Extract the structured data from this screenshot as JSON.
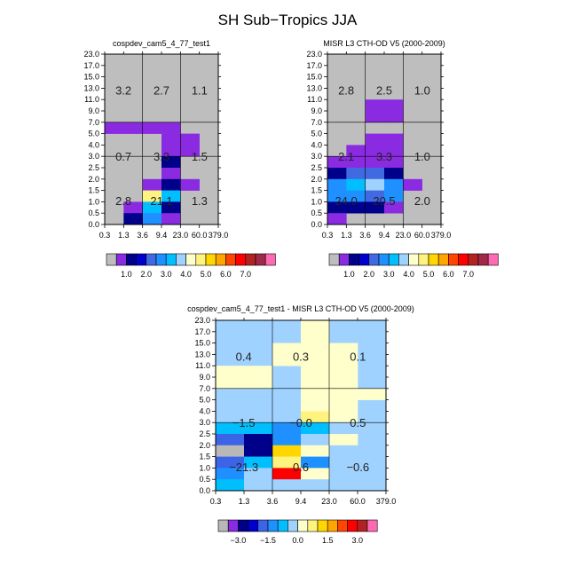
{
  "main_title": "SH Sub−Tropics JJA",
  "colors": {
    "gray": "#bebebe",
    "palette": [
      "#8a2be2",
      "#00008b",
      "#0000cd",
      "#4169e1",
      "#1e90ff",
      "#00bfff",
      "#a0d2ff",
      "#ffffcc",
      "#fff380",
      "#ffd700",
      "#ffa500",
      "#ff4500",
      "#ff0000",
      "#b22222",
      "#a0294a",
      "#ff69b4"
    ],
    "diff_palette": [
      "#b8b8b8",
      "#8a2be2",
      "#00008b",
      "#0000cd",
      "#3c64e6",
      "#1e90ff",
      "#00bfff",
      "#a0d2ff",
      "#ffffcc",
      "#fff380",
      "#ffd700",
      "#ffa500",
      "#ff4500",
      "#ff0000",
      "#b22222",
      "#ff69b4"
    ]
  },
  "chart_data": [
    {
      "id": "model",
      "type": "heatmap",
      "title": "cospdev_cam5_4_77_test1",
      "x_ticks": [
        "0.3",
        "1.3",
        "3.6",
        "9.4",
        "23.0",
        "60.0",
        "379.0"
      ],
      "y_ticks": [
        "0.0",
        "0.5",
        "1.0",
        "1.5",
        "2.0",
        "2.5",
        "3.0",
        "4.0",
        "5.0",
        "7.0",
        "9.0",
        "11.0",
        "13.0",
        "15.0",
        "17.0",
        "23.0"
      ],
      "region_labels": [
        {
          "text": "3.2",
          "col": 0,
          "row": "high"
        },
        {
          "text": "2.7",
          "col": 1,
          "row": "high"
        },
        {
          "text": "1.1",
          "col": 2,
          "row": "high"
        },
        {
          "text": "0.7",
          "col": 0,
          "row": "mid"
        },
        {
          "text": "3.3",
          "col": 1,
          "row": "mid"
        },
        {
          "text": "1.5",
          "col": 2,
          "row": "mid"
        },
        {
          "text": "2.8",
          "col": 0,
          "row": "low"
        },
        {
          "text": "21.1",
          "col": 1,
          "row": "low"
        },
        {
          "text": "1.3",
          "col": 2,
          "row": "low"
        }
      ],
      "cells": [
        {
          "tau": 0,
          "ctp": 8,
          "bin": 1
        },
        {
          "tau": 1,
          "ctp": 8,
          "bin": 1
        },
        {
          "tau": 2,
          "ctp": 8,
          "bin": 1
        },
        {
          "tau": 3,
          "ctp": 8,
          "bin": 1
        },
        {
          "tau": 4,
          "ctp": 7,
          "bin": 1
        },
        {
          "tau": 3,
          "ctp": 7,
          "bin": 1
        },
        {
          "tau": 4,
          "ctp": 6,
          "bin": 1
        },
        {
          "tau": 3,
          "ctp": 6,
          "bin": 1
        },
        {
          "tau": 3,
          "ctp": 5,
          "bin": 2
        },
        {
          "tau": 3,
          "ctp": 4,
          "bin": 1
        },
        {
          "tau": 2,
          "ctp": 3,
          "bin": 1
        },
        {
          "tau": 3,
          "ctp": 3,
          "bin": 2
        },
        {
          "tau": 4,
          "ctp": 3,
          "bin": 1
        },
        {
          "tau": 2,
          "ctp": 2,
          "bin": 9
        },
        {
          "tau": 3,
          "ctp": 2,
          "bin": 6
        },
        {
          "tau": 1,
          "ctp": 1,
          "bin": 1
        },
        {
          "tau": 2,
          "ctp": 1,
          "bin": 6
        },
        {
          "tau": 3,
          "ctp": 1,
          "bin": 2
        },
        {
          "tau": 1,
          "ctp": 0,
          "bin": 2
        },
        {
          "tau": 2,
          "ctp": 0,
          "bin": 5
        },
        {
          "tau": 3,
          "ctp": 0,
          "bin": 1
        }
      ]
    },
    {
      "id": "obs",
      "type": "heatmap",
      "title": "MISR L3 CTH-OD V5 (2000-2009)",
      "x_ticks": [
        "0.3",
        "1.3",
        "3.6",
        "9.4",
        "23.0",
        "60.0",
        "379.0"
      ],
      "y_ticks": [
        "0.0",
        "0.5",
        "1.0",
        "1.5",
        "2.0",
        "2.5",
        "3.0",
        "4.0",
        "5.0",
        "7.0",
        "9.0",
        "11.0",
        "13.0",
        "15.0",
        "17.0",
        "23.0"
      ],
      "region_labels": [
        {
          "text": "2.8",
          "col": 0,
          "row": "high"
        },
        {
          "text": "2.5",
          "col": 1,
          "row": "high"
        },
        {
          "text": "1.0",
          "col": 2,
          "row": "high"
        },
        {
          "text": "2.1",
          "col": 0,
          "row": "mid"
        },
        {
          "text": "3.3",
          "col": 1,
          "row": "mid"
        },
        {
          "text": "1.0",
          "col": 2,
          "row": "mid"
        },
        {
          "text": "24.0",
          "col": 0,
          "row": "low"
        },
        {
          "text": "20.5",
          "col": 1,
          "row": "low"
        },
        {
          "text": "2.0",
          "col": 2,
          "row": "low"
        }
      ],
      "cells": [
        {
          "tau": 2,
          "ctp": 10,
          "bin": 1
        },
        {
          "tau": 3,
          "ctp": 10,
          "bin": 1
        },
        {
          "tau": 2,
          "ctp": 9,
          "bin": 1
        },
        {
          "tau": 3,
          "ctp": 9,
          "bin": 1
        },
        {
          "tau": 2,
          "ctp": 7,
          "bin": 1
        },
        {
          "tau": 3,
          "ctp": 7,
          "bin": 1
        },
        {
          "tau": 1,
          "ctp": 6,
          "bin": 1
        },
        {
          "tau": 2,
          "ctp": 6,
          "bin": 1
        },
        {
          "tau": 3,
          "ctp": 6,
          "bin": 1
        },
        {
          "tau": 0,
          "ctp": 5,
          "bin": 1
        },
        {
          "tau": 1,
          "ctp": 5,
          "bin": 1
        },
        {
          "tau": 2,
          "ctp": 5,
          "bin": 1
        },
        {
          "tau": 3,
          "ctp": 5,
          "bin": 1
        },
        {
          "tau": 0,
          "ctp": 4,
          "bin": 2
        },
        {
          "tau": 1,
          "ctp": 4,
          "bin": 4
        },
        {
          "tau": 2,
          "ctp": 4,
          "bin": 4
        },
        {
          "tau": 3,
          "ctp": 4,
          "bin": 2
        },
        {
          "tau": 0,
          "ctp": 3,
          "bin": 5
        },
        {
          "tau": 1,
          "ctp": 3,
          "bin": 6
        },
        {
          "tau": 2,
          "ctp": 3,
          "bin": 7
        },
        {
          "tau": 3,
          "ctp": 3,
          "bin": 5
        },
        {
          "tau": 4,
          "ctp": 3,
          "bin": 1
        },
        {
          "tau": 0,
          "ctp": 2,
          "bin": 5
        },
        {
          "tau": 1,
          "ctp": 2,
          "bin": 5
        },
        {
          "tau": 2,
          "ctp": 2,
          "bin": 4
        },
        {
          "tau": 3,
          "ctp": 2,
          "bin": 5
        },
        {
          "tau": 0,
          "ctp": 1,
          "bin": 2
        },
        {
          "tau": 1,
          "ctp": 1,
          "bin": 2
        },
        {
          "tau": 2,
          "ctp": 1,
          "bin": 2
        },
        {
          "tau": 3,
          "ctp": 1,
          "bin": 1
        },
        {
          "tau": 0,
          "ctp": 0,
          "bin": 1
        }
      ]
    },
    {
      "id": "diff",
      "type": "heatmap",
      "title": "cospdev_cam5_4_77_test1 - MISR L3 CTH-OD V5 (2000-2009)",
      "x_ticks": [
        "0.3",
        "1.3",
        "3.6",
        "9.4",
        "23.0",
        "60.0",
        "379.0"
      ],
      "y_ticks": [
        "0.0",
        "0.5",
        "1.0",
        "1.5",
        "2.0",
        "2.5",
        "3.0",
        "4.0",
        "5.0",
        "7.0",
        "9.0",
        "11.0",
        "13.0",
        "15.0",
        "17.0",
        "23.0"
      ],
      "region_labels": [
        {
          "text": "0.4",
          "col": 0,
          "row": "high"
        },
        {
          "text": "0.3",
          "col": 1,
          "row": "high"
        },
        {
          "text": "0.1",
          "col": 2,
          "row": "high"
        },
        {
          "text": "−1.5",
          "col": 0,
          "row": "mid"
        },
        {
          "text": "−0.0",
          "col": 1,
          "row": "mid"
        },
        {
          "text": "0.5",
          "col": 2,
          "row": "mid"
        },
        {
          "text": "−21.3",
          "col": 0,
          "row": "low"
        },
        {
          "text": "0.6",
          "col": 1,
          "row": "low"
        },
        {
          "text": "−0.6",
          "col": 2,
          "row": "low"
        }
      ],
      "default_bin": 7,
      "cells": [
        {
          "tau": 0,
          "ctp": 13,
          "bin": 7
        },
        {
          "tau": 3,
          "ctp": 14,
          "bin": 8
        },
        {
          "tau": 2,
          "ctp": 12,
          "bin": 8
        },
        {
          "tau": 3,
          "ctp": 12,
          "bin": 8
        },
        {
          "tau": 3,
          "ctp": 13,
          "bin": 8
        },
        {
          "tau": 4,
          "ctp": 12,
          "bin": 8
        },
        {
          "tau": 0,
          "ctp": 10,
          "bin": 8
        },
        {
          "tau": 1,
          "ctp": 10,
          "bin": 8
        },
        {
          "tau": 2,
          "ctp": 11,
          "bin": 8
        },
        {
          "tau": 3,
          "ctp": 11,
          "bin": 8
        },
        {
          "tau": 4,
          "ctp": 11,
          "bin": 8
        },
        {
          "tau": 0,
          "ctp": 9,
          "bin": 8
        },
        {
          "tau": 1,
          "ctp": 9,
          "bin": 8
        },
        {
          "tau": 3,
          "ctp": 10,
          "bin": 8
        },
        {
          "tau": 4,
          "ctp": 10,
          "bin": 8
        },
        {
          "tau": 3,
          "ctp": 9,
          "bin": 8
        },
        {
          "tau": 4,
          "ctp": 9,
          "bin": 8
        },
        {
          "tau": 3,
          "ctp": 8,
          "bin": 8
        },
        {
          "tau": 4,
          "ctp": 8,
          "bin": 8
        },
        {
          "tau": 5,
          "ctp": 8,
          "bin": 8
        },
        {
          "tau": 3,
          "ctp": 7,
          "bin": 8
        },
        {
          "tau": 4,
          "ctp": 7,
          "bin": 8
        },
        {
          "tau": 3,
          "ctp": 6,
          "bin": 9
        },
        {
          "tau": 4,
          "ctp": 6,
          "bin": 8
        },
        {
          "tau": 0,
          "ctp": 5,
          "bin": 6
        },
        {
          "tau": 1,
          "ctp": 5,
          "bin": 6
        },
        {
          "tau": 2,
          "ctp": 5,
          "bin": 5
        },
        {
          "tau": 3,
          "ctp": 5,
          "bin": 6
        },
        {
          "tau": 4,
          "ctp": 5,
          "bin": 7
        },
        {
          "tau": 0,
          "ctp": 4,
          "bin": 4
        },
        {
          "tau": 1,
          "ctp": 4,
          "bin": 2
        },
        {
          "tau": 2,
          "ctp": 4,
          "bin": 5
        },
        {
          "tau": 3,
          "ctp": 4,
          "bin": 7
        },
        {
          "tau": 4,
          "ctp": 4,
          "bin": 8
        },
        {
          "tau": 0,
          "ctp": 3,
          "bin": 0
        },
        {
          "tau": 1,
          "ctp": 3,
          "bin": 2
        },
        {
          "tau": 2,
          "ctp": 3,
          "bin": 10
        },
        {
          "tau": 3,
          "ctp": 3,
          "bin": 8
        },
        {
          "tau": 4,
          "ctp": 3,
          "bin": 7
        },
        {
          "tau": 0,
          "ctp": 2,
          "bin": 4
        },
        {
          "tau": 1,
          "ctp": 2,
          "bin": 6
        },
        {
          "tau": 2,
          "ctp": 2,
          "bin": 9
        },
        {
          "tau": 3,
          "ctp": 2,
          "bin": 5
        },
        {
          "tau": 4,
          "ctp": 2,
          "bin": 7
        },
        {
          "tau": 0,
          "ctp": 1,
          "bin": 5
        },
        {
          "tau": 1,
          "ctp": 1,
          "bin": 7
        },
        {
          "tau": 2,
          "ctp": 1,
          "bin": 13
        },
        {
          "tau": 3,
          "ctp": 1,
          "bin": 8
        },
        {
          "tau": 4,
          "ctp": 1,
          "bin": 7
        },
        {
          "tau": 0,
          "ctp": 0,
          "bin": 6
        },
        {
          "tau": 1,
          "ctp": 0,
          "bin": 7
        },
        {
          "tau": 2,
          "ctp": 0,
          "bin": 7
        },
        {
          "tau": 3,
          "ctp": 0,
          "bin": 7
        },
        {
          "tau": 4,
          "ctp": 0,
          "bin": 7
        }
      ]
    }
  ],
  "colorbars": {
    "abs_labels": [
      "1.0",
      "2.0",
      "3.0",
      "4.0",
      "5.0",
      "6.0",
      "7.0"
    ],
    "diff_labels": [
      "−3.0",
      "−1.5",
      "0.0",
      "1.5",
      "3.0"
    ]
  }
}
